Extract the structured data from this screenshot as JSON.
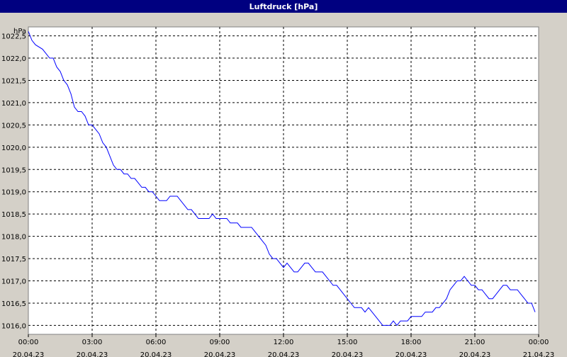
{
  "window": {
    "title": "Luftdruck [hPa]"
  },
  "chart_data": {
    "type": "line",
    "title": "Luftdruck [hPa]",
    "ylabel": "hPa",
    "xlabel": "",
    "ylim": [
      1015.8,
      1022.7
    ],
    "yticks": [
      1016.0,
      1016.5,
      1017.0,
      1017.5,
      1018.0,
      1018.5,
      1019.0,
      1019.5,
      1020.0,
      1020.5,
      1021.0,
      1021.5,
      1022.0,
      1022.5
    ],
    "ytick_labels": [
      "1016,0",
      "1016,5",
      "1017,0",
      "1017,5",
      "1018,0",
      "1018,5",
      "1019,0",
      "1019,5",
      "1020,0",
      "1020,5",
      "1021,0",
      "1021,5",
      "1022,0",
      "1022,5"
    ],
    "xticks": [
      {
        "time": "00:00",
        "date": "20.04.23"
      },
      {
        "time": "03:00",
        "date": "20.04.23"
      },
      {
        "time": "06:00",
        "date": "20.04.23"
      },
      {
        "time": "09:00",
        "date": "20.04.23"
      },
      {
        "time": "12:00",
        "date": "20.04.23"
      },
      {
        "time": "15:00",
        "date": "20.04.23"
      },
      {
        "time": "18:00",
        "date": "20.04.23"
      },
      {
        "time": "21:00",
        "date": "20.04.23"
      },
      {
        "time": "00:00",
        "date": "21.04.23"
      }
    ],
    "grid": true,
    "line_color": "#0000ff",
    "series": [
      {
        "x": [
          "00:00",
          "00:10",
          "00:20",
          "00:40",
          "01:00",
          "01:10",
          "01:20",
          "01:30",
          "01:40",
          "01:50",
          "02:00",
          "02:10",
          "02:20",
          "02:30",
          "02:40",
          "02:50",
          "03:00",
          "03:10",
          "03:20",
          "03:30",
          "03:40",
          "03:50",
          "04:00",
          "04:10",
          "04:20",
          "04:30",
          "04:40",
          "04:50",
          "05:00",
          "05:10",
          "05:20",
          "05:30",
          "05:40",
          "05:50",
          "06:00",
          "06:10",
          "06:20",
          "06:30",
          "06:40",
          "06:50",
          "07:00",
          "07:10",
          "07:20",
          "07:30",
          "07:40",
          "07:50",
          "08:00",
          "08:10",
          "08:20",
          "08:30",
          "08:40",
          "08:50",
          "09:00",
          "09:10",
          "09:20",
          "09:30",
          "09:40",
          "09:50",
          "10:00",
          "10:10",
          "10:20",
          "10:30",
          "10:40",
          "10:50",
          "11:00",
          "11:10",
          "11:20",
          "11:30",
          "11:40",
          "11:50",
          "12:00",
          "12:10",
          "12:20",
          "12:30",
          "12:40",
          "12:50",
          "13:00",
          "13:10",
          "13:20",
          "13:30",
          "13:40",
          "13:50",
          "14:00",
          "14:10",
          "14:20",
          "14:30",
          "14:40",
          "14:50",
          "15:00",
          "15:10",
          "15:20",
          "15:30",
          "15:40",
          "15:50",
          "16:00",
          "16:10",
          "16:20",
          "16:30",
          "16:40",
          "16:50",
          "17:00",
          "17:10",
          "17:20",
          "17:30",
          "17:40",
          "17:50",
          "18:00",
          "18:10",
          "18:20",
          "18:30",
          "18:40",
          "18:50",
          "19:00",
          "19:10",
          "19:20",
          "19:30",
          "19:40",
          "19:50",
          "20:00",
          "20:10",
          "20:20",
          "20:30",
          "20:40",
          "20:50",
          "21:00",
          "21:10",
          "21:20",
          "21:30",
          "21:40",
          "21:50",
          "22:00",
          "22:10",
          "22:20",
          "22:30",
          "22:40",
          "22:50",
          "23:00",
          "23:10",
          "23:20",
          "23:30",
          "23:40",
          "23:50"
        ],
        "y": [
          1022.6,
          1022.4,
          1022.3,
          1022.2,
          1022.0,
          1022.0,
          1021.8,
          1021.7,
          1021.5,
          1021.4,
          1021.2,
          1020.9,
          1020.8,
          1020.8,
          1020.7,
          1020.5,
          1020.5,
          1020.4,
          1020.3,
          1020.1,
          1020.0,
          1019.8,
          1019.6,
          1019.5,
          1019.5,
          1019.4,
          1019.4,
          1019.3,
          1019.3,
          1019.2,
          1019.1,
          1019.1,
          1019.0,
          1019.0,
          1018.9,
          1018.8,
          1018.8,
          1018.8,
          1018.9,
          1018.9,
          1018.9,
          1018.8,
          1018.7,
          1018.6,
          1018.6,
          1018.5,
          1018.4,
          1018.4,
          1018.4,
          1018.4,
          1018.5,
          1018.4,
          1018.4,
          1018.4,
          1018.4,
          1018.3,
          1018.3,
          1018.3,
          1018.2,
          1018.2,
          1018.2,
          1018.2,
          1018.1,
          1018.0,
          1017.9,
          1017.8,
          1017.6,
          1017.5,
          1017.5,
          1017.4,
          1017.3,
          1017.4,
          1017.3,
          1017.2,
          1017.2,
          1017.3,
          1017.4,
          1017.4,
          1017.3,
          1017.2,
          1017.2,
          1017.2,
          1017.1,
          1017.0,
          1016.9,
          1016.9,
          1016.8,
          1016.7,
          1016.6,
          1016.5,
          1016.4,
          1016.4,
          1016.4,
          1016.3,
          1016.4,
          1016.3,
          1016.2,
          1016.1,
          1016.0,
          1016.0,
          1016.0,
          1016.1,
          1016.0,
          1016.1,
          1016.1,
          1016.1,
          1016.2,
          1016.2,
          1016.2,
          1016.2,
          1016.3,
          1016.3,
          1016.3,
          1016.4,
          1016.4,
          1016.5,
          1016.6,
          1016.8,
          1016.9,
          1017.0,
          1017.0,
          1017.1,
          1017.0,
          1016.9,
          1016.9,
          1016.8,
          1016.8,
          1016.7,
          1016.6,
          1016.6,
          1016.7,
          1016.8,
          1016.9,
          1016.9,
          1016.8,
          1016.8,
          1016.8,
          1016.7,
          1016.6,
          1016.5,
          1016.5,
          1016.3
        ]
      }
    ]
  }
}
